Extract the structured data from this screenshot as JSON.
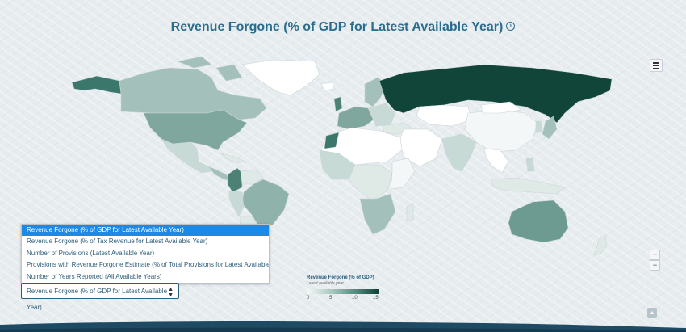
{
  "title": "Revenue Forgone (% of GDP for Latest Available Year)",
  "icons": {
    "info": "info-icon",
    "menu": "hamburger-menu-icon",
    "select_arrows": "up-down-arrows-icon",
    "zoom_in": "plus-icon",
    "zoom_out": "minus-icon",
    "scroll_top": "chevron-up-icon"
  },
  "dropdown": {
    "options": [
      "Revenue Forgone (% of GDP for Latest Available Year)",
      "Revenue Forgone (% of Tax Revenue for Latest Available Year)",
      "Number of Provisions (Latest Available Year)",
      "Provisions with Revenue Forgone Estimate (% of Total Provisions for Latest Available Year)",
      "Number of Years Reported (All Available Years)"
    ],
    "highlighted_index": 0,
    "selected_value": "Revenue Forgone (% of GDP for Latest Available Year)"
  },
  "legend": {
    "title": "Revenue Forgone (% of GDP)",
    "subtitle": "Latest available year",
    "ticks": [
      "0",
      "5",
      "10",
      "15"
    ],
    "colors": [
      "#f7f9f9",
      "#a8c7bf",
      "#4f877a",
      "#103f36"
    ]
  },
  "zoom": {
    "in": "+",
    "out": "−"
  },
  "colors": {
    "accent": "#2a6d8c",
    "dropdown_highlight": "#1e88e5",
    "ocean_background": "#e7ecef"
  }
}
